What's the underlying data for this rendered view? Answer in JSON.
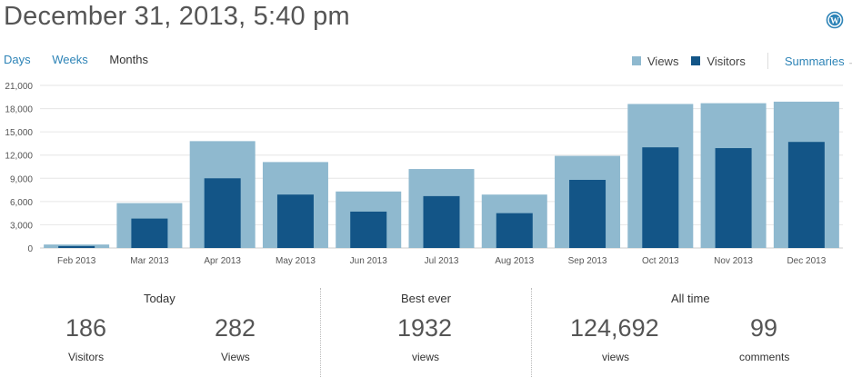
{
  "header": {
    "title": "December 31, 2013, 5:40 pm"
  },
  "tabs": [
    {
      "label": "Days",
      "active": false
    },
    {
      "label": "Weeks",
      "active": false
    },
    {
      "label": "Months",
      "active": true
    }
  ],
  "legend": {
    "views_label": "Views",
    "visitors_label": "Visitors",
    "views_color": "#8fb9cf",
    "visitors_color": "#135587",
    "summaries_label": "Summaries",
    "summaries_arrow": "→"
  },
  "chart_data": {
    "type": "bar",
    "categories": [
      "Feb 2013",
      "Mar 2013",
      "Apr 2013",
      "May 2013",
      "Jun 2013",
      "Jul 2013",
      "Aug 2013",
      "Sep 2013",
      "Oct 2013",
      "Nov 2013",
      "Dec 2013"
    ],
    "series": [
      {
        "name": "Views",
        "values": [
          450,
          5800,
          13800,
          11100,
          7300,
          10200,
          6900,
          11900,
          18600,
          18700,
          18900
        ]
      },
      {
        "name": "Visitors",
        "values": [
          250,
          3800,
          9000,
          6900,
          4700,
          6700,
          4500,
          8800,
          13000,
          12900,
          13700
        ]
      }
    ],
    "yticks": [
      "0",
      "3,000",
      "6,000",
      "9,000",
      "12,000",
      "15,000",
      "18,000",
      "21,000"
    ],
    "ylim": [
      0,
      21000
    ],
    "grid": true
  },
  "stats": {
    "today": {
      "title": "Today",
      "visitors": {
        "value": "186",
        "label": "Visitors"
      },
      "views": {
        "value": "282",
        "label": "Views"
      }
    },
    "best_ever": {
      "title": "Best ever",
      "views": {
        "value": "1932",
        "label": "views"
      }
    },
    "all_time": {
      "title": "All time",
      "views": {
        "value": "124,692",
        "label": "views"
      },
      "comments": {
        "value": "99",
        "label": "comments"
      }
    }
  }
}
